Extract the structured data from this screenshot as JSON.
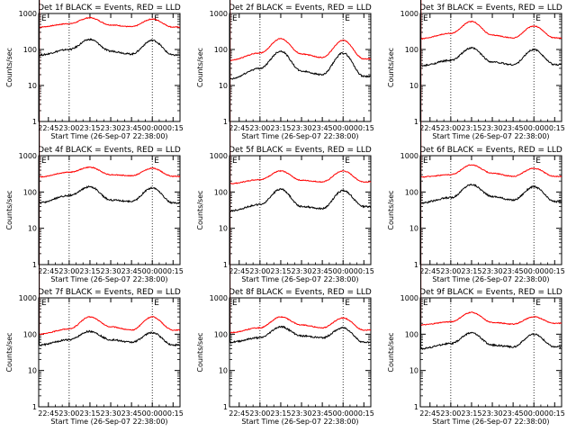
{
  "figure": {
    "x_ticks": [
      "22:45",
      "23:00",
      "23:15",
      "23:30",
      "23:45",
      "00:00",
      "00:15"
    ],
    "y_ticks": [
      "1",
      "10",
      "100",
      "1000"
    ],
    "ylabel": "Counts/sec",
    "xlabel": "Start Time (26-Sep-07 22:38:00)",
    "marker": "E",
    "colors": {
      "events": "#000000",
      "lld": "#ff0000",
      "axes": "#000000",
      "background": "#ffffff"
    }
  },
  "chart_data": [
    {
      "type": "line",
      "title": "Det 1f BLACK = Events, RED = LLD",
      "yscale": "log",
      "ylim": [
        1,
        1000
      ],
      "x": [
        "22:38",
        "23:00",
        "23:15",
        "23:30",
        "23:45",
        "00:00",
        "00:15"
      ],
      "series": [
        {
          "values": [
            420,
            520,
            760,
            480,
            430,
            700,
            420
          ]
        },
        {
          "values": [
            70,
            100,
            190,
            90,
            75,
            180,
            70
          ]
        }
      ]
    },
    {
      "type": "line",
      "title": "Det 2f BLACK = Events, RED = LLD",
      "yscale": "log",
      "ylim": [
        1,
        1000
      ],
      "x": [
        "22:38",
        "23:00",
        "23:15",
        "23:30",
        "23:45",
        "00:00",
        "00:15"
      ],
      "series": [
        {
          "values": [
            50,
            80,
            200,
            75,
            60,
            180,
            55
          ]
        },
        {
          "values": [
            15,
            30,
            90,
            25,
            20,
            80,
            18
          ]
        }
      ]
    },
    {
      "type": "line",
      "title": "Det 3f BLACK = Events, RED = LLD",
      "yscale": "log",
      "ylim": [
        1,
        1000
      ],
      "x": [
        "22:38",
        "23:00",
        "23:15",
        "23:30",
        "23:45",
        "00:00",
        "00:15"
      ],
      "series": [
        {
          "values": [
            200,
            280,
            600,
            250,
            210,
            450,
            210
          ]
        },
        {
          "values": [
            35,
            50,
            110,
            45,
            38,
            100,
            38
          ]
        }
      ]
    },
    {
      "type": "line",
      "title": "Det 4f BLACK = Events, RED = LLD",
      "yscale": "log",
      "ylim": [
        1,
        1000
      ],
      "x": [
        "22:38",
        "23:00",
        "23:15",
        "23:30",
        "23:45",
        "00:00",
        "00:15"
      ],
      "series": [
        {
          "values": [
            260,
            350,
            480,
            300,
            280,
            450,
            270
          ]
        },
        {
          "values": [
            50,
            80,
            140,
            60,
            55,
            130,
            50
          ]
        }
      ]
    },
    {
      "type": "line",
      "title": "Det 5f BLACK = Events, RED = LLD",
      "yscale": "log",
      "ylim": [
        1,
        1000
      ],
      "x": [
        "22:38",
        "23:00",
        "23:15",
        "23:30",
        "23:45",
        "00:00",
        "00:15"
      ],
      "series": [
        {
          "values": [
            170,
            220,
            380,
            210,
            190,
            380,
            190
          ]
        },
        {
          "values": [
            30,
            45,
            120,
            40,
            35,
            110,
            40
          ]
        }
      ]
    },
    {
      "type": "line",
      "title": "Det 6f BLACK = Events, RED = LLD",
      "yscale": "log",
      "ylim": [
        1,
        1000
      ],
      "x": [
        "22:38",
        "23:00",
        "23:15",
        "23:30",
        "23:45",
        "00:00",
        "00:15"
      ],
      "series": [
        {
          "values": [
            260,
            300,
            560,
            330,
            270,
            450,
            270
          ]
        },
        {
          "values": [
            50,
            70,
            160,
            75,
            60,
            140,
            55
          ]
        }
      ]
    },
    {
      "type": "line",
      "title": "Det 7f BLACK = Events, RED = LLD",
      "yscale": "log",
      "ylim": [
        1,
        1000
      ],
      "x": [
        "22:38",
        "23:00",
        "23:15",
        "23:30",
        "23:45",
        "00:00",
        "00:15"
      ],
      "series": [
        {
          "values": [
            100,
            140,
            300,
            160,
            130,
            300,
            130
          ]
        },
        {
          "values": [
            50,
            70,
            120,
            70,
            60,
            110,
            50
          ]
        }
      ]
    },
    {
      "type": "line",
      "title": "Det 8f BLACK = Events, RED = LLD",
      "yscale": "log",
      "ylim": [
        1,
        1000
      ],
      "x": [
        "22:38",
        "23:00",
        "23:15",
        "23:30",
        "23:45",
        "00:00",
        "00:15"
      ],
      "series": [
        {
          "values": [
            110,
            150,
            300,
            180,
            150,
            280,
            130
          ]
        },
        {
          "values": [
            60,
            80,
            160,
            90,
            80,
            150,
            60
          ]
        }
      ]
    },
    {
      "type": "line",
      "title": "Det 9f BLACK = Events, RED = LLD",
      "yscale": "log",
      "ylim": [
        1,
        1000
      ],
      "x": [
        "22:38",
        "23:00",
        "23:15",
        "23:30",
        "23:45",
        "00:00",
        "00:15"
      ],
      "series": [
        {
          "values": [
            180,
            220,
            400,
            210,
            190,
            300,
            200
          ]
        },
        {
          "values": [
            40,
            55,
            110,
            50,
            45,
            100,
            45
          ]
        }
      ]
    }
  ]
}
